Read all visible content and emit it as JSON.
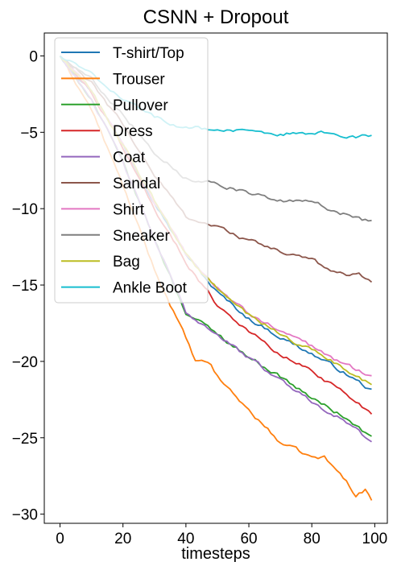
{
  "chart_data": {
    "type": "line",
    "title": "CSNN + Dropout",
    "xlabel": "timesteps",
    "ylabel": "",
    "xlim": [
      -5,
      104
    ],
    "ylim": [
      -30.6,
      1.5
    ],
    "x_ticks": [
      0,
      20,
      40,
      60,
      80,
      100
    ],
    "y_ticks": [
      0,
      -5,
      -10,
      -15,
      -20,
      -25,
      -30
    ],
    "x_tick_labels": [
      "0",
      "20",
      "40",
      "60",
      "80",
      "100"
    ],
    "y_tick_labels": [
      "0",
      "−5",
      "−10",
      "−15",
      "−20",
      "−25",
      "−30"
    ],
    "grid": false,
    "legend_position": "top-left",
    "x_range": [
      0,
      99
    ],
    "series": [
      {
        "name": "T-shirt/Top",
        "color": "#1f77b4",
        "anchors": [
          [
            0,
            0
          ],
          [
            10,
            -2.3
          ],
          [
            20,
            -5.8
          ],
          [
            30,
            -9.5
          ],
          [
            40,
            -13.0
          ],
          [
            50,
            -15.5
          ],
          [
            60,
            -17.2
          ],
          [
            70,
            -18.4
          ],
          [
            80,
            -19.5
          ],
          [
            90,
            -20.7
          ],
          [
            99,
            -21.9
          ]
        ]
      },
      {
        "name": "Trouser",
        "color": "#ff7f0e",
        "anchors": [
          [
            0,
            0
          ],
          [
            10,
            -3.5
          ],
          [
            20,
            -8.5
          ],
          [
            30,
            -14.0
          ],
          [
            40,
            -18.5
          ],
          [
            43,
            -20.0
          ],
          [
            48,
            -20.2
          ],
          [
            50,
            -21.0
          ],
          [
            60,
            -23.2
          ],
          [
            70,
            -25.3
          ],
          [
            80,
            -26.3
          ],
          [
            84,
            -26.3
          ],
          [
            90,
            -27.6
          ],
          [
            94,
            -28.7
          ],
          [
            97,
            -28.4
          ],
          [
            99,
            -29.1
          ]
        ]
      },
      {
        "name": "Pullover",
        "color": "#2ca02c",
        "anchors": [
          [
            0,
            0
          ],
          [
            10,
            -2.8
          ],
          [
            20,
            -7.0
          ],
          [
            30,
            -12.0
          ],
          [
            40,
            -16.8
          ],
          [
            50,
            -18.2
          ],
          [
            60,
            -19.7
          ],
          [
            70,
            -21.0
          ],
          [
            80,
            -22.4
          ],
          [
            90,
            -23.6
          ],
          [
            99,
            -25.0
          ]
        ]
      },
      {
        "name": "Dress",
        "color": "#d62728",
        "anchors": [
          [
            0,
            0
          ],
          [
            10,
            -2.4
          ],
          [
            20,
            -6.0
          ],
          [
            30,
            -10.0
          ],
          [
            40,
            -13.5
          ],
          [
            50,
            -16.3
          ],
          [
            60,
            -18.0
          ],
          [
            70,
            -19.6
          ],
          [
            80,
            -20.6
          ],
          [
            90,
            -22.0
          ],
          [
            99,
            -23.4
          ]
        ]
      },
      {
        "name": "Coat",
        "color": "#9467bd",
        "anchors": [
          [
            0,
            0
          ],
          [
            10,
            -2.8
          ],
          [
            20,
            -7.0
          ],
          [
            30,
            -12.0
          ],
          [
            40,
            -16.8
          ],
          [
            50,
            -18.2
          ],
          [
            60,
            -19.8
          ],
          [
            70,
            -21.2
          ],
          [
            80,
            -22.6
          ],
          [
            90,
            -23.8
          ],
          [
            99,
            -25.3
          ]
        ]
      },
      {
        "name": "Sandal",
        "color": "#8c564b",
        "anchors": [
          [
            0,
            0
          ],
          [
            10,
            -1.8
          ],
          [
            20,
            -4.5
          ],
          [
            30,
            -7.8
          ],
          [
            40,
            -10.5
          ],
          [
            50,
            -11.2
          ],
          [
            60,
            -12.1
          ],
          [
            70,
            -12.8
          ],
          [
            80,
            -13.4
          ],
          [
            90,
            -14.3
          ],
          [
            95,
            -14.3
          ],
          [
            99,
            -14.7
          ]
        ]
      },
      {
        "name": "Shirt",
        "color": "#e377c2",
        "anchors": [
          [
            0,
            0
          ],
          [
            10,
            -2.3
          ],
          [
            20,
            -5.8
          ],
          [
            30,
            -9.6
          ],
          [
            40,
            -13.0
          ],
          [
            50,
            -15.2
          ],
          [
            60,
            -16.9
          ],
          [
            70,
            -18.0
          ],
          [
            80,
            -19.0
          ],
          [
            90,
            -20.2
          ],
          [
            99,
            -20.9
          ]
        ]
      },
      {
        "name": "Sneaker",
        "color": "#7f7f7f",
        "anchors": [
          [
            0,
            0
          ],
          [
            10,
            -1.5
          ],
          [
            20,
            -3.8
          ],
          [
            30,
            -6.3
          ],
          [
            40,
            -8.0
          ],
          [
            50,
            -8.3
          ],
          [
            60,
            -9.0
          ],
          [
            70,
            -9.5
          ],
          [
            80,
            -9.6
          ],
          [
            90,
            -10.3
          ],
          [
            99,
            -10.9
          ]
        ]
      },
      {
        "name": "Bag",
        "color": "#bcbd22",
        "anchors": [
          [
            0,
            0
          ],
          [
            10,
            -2.3
          ],
          [
            20,
            -5.8
          ],
          [
            30,
            -9.5
          ],
          [
            40,
            -13.0
          ],
          [
            50,
            -15.3
          ],
          [
            60,
            -17.0
          ],
          [
            70,
            -18.2
          ],
          [
            80,
            -19.3
          ],
          [
            90,
            -20.4
          ],
          [
            99,
            -21.5
          ]
        ]
      },
      {
        "name": "Ankle Boot",
        "color": "#17becf",
        "anchors": [
          [
            0,
            0
          ],
          [
            10,
            -1.2
          ],
          [
            20,
            -2.8
          ],
          [
            30,
            -4.0
          ],
          [
            40,
            -4.7
          ],
          [
            50,
            -4.8
          ],
          [
            60,
            -5.0
          ],
          [
            70,
            -5.1
          ],
          [
            80,
            -5.0
          ],
          [
            90,
            -5.2
          ],
          [
            99,
            -5.3
          ]
        ]
      }
    ]
  }
}
